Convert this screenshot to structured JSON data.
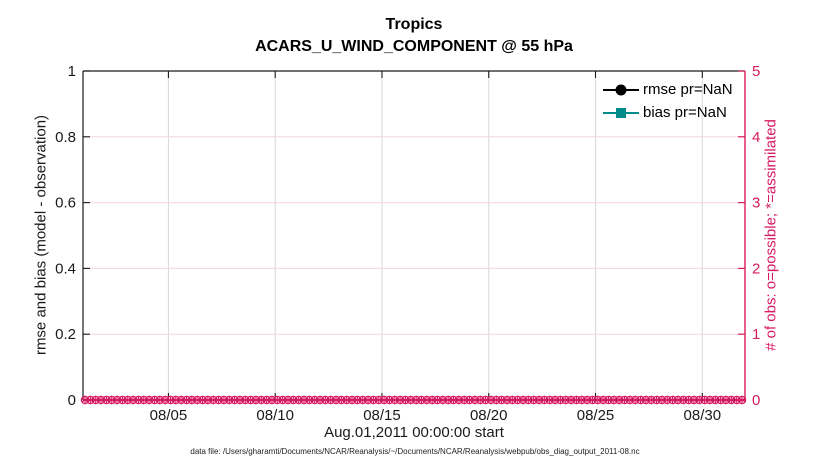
{
  "figure": {
    "title": "Tropics",
    "subtitle": "ACARS_U_WIND_COMPONENT @ 55 hPa",
    "xlabel": "Aug.01,2011 00:00:00 start",
    "ylabel_left": "rmse and bias (model - observation)",
    "ylabel_right": "# of obs: o=possible; *=assimilated",
    "footnote": "data file: /Users/gharamti/Documents/NCAR/Reanalysis/~/Documents/NCAR/Reanalysis/webpub/obs_diag_output_2011-08.nc"
  },
  "colors": {
    "axes_dark": "#1a1a1a",
    "obs_pink": "#d81b60",
    "grid_gray": "#d8d8d8",
    "grid_pink": "#f6d5e2",
    "rmse_black": "#000000",
    "bias_teal": "#008b8b"
  },
  "legend": {
    "entries": [
      {
        "label": "rmse pr=NaN",
        "marker": "filled-circle",
        "color": "#000000"
      },
      {
        "label": "bias pr=NaN",
        "marker": "filled-square",
        "color": "#008b8b"
      }
    ]
  },
  "chart_data": {
    "type": "line",
    "title": "Tropics",
    "subtitle": "ACARS_U_WIND_COMPONENT @ 55 hPa",
    "xlabel": "Aug.01,2011 00:00:00 start",
    "x_axis": {
      "range_days": [
        0,
        31
      ],
      "tick_day_offsets": [
        4,
        9,
        14,
        19,
        24,
        29
      ],
      "tick_labels": [
        "08/05",
        "08/10",
        "08/15",
        "08/20",
        "08/25",
        "08/30"
      ]
    },
    "y_left": {
      "label": "rmse and bias (model - observation)",
      "range": [
        0,
        1
      ],
      "tick_values": [
        0,
        0.2,
        0.4,
        0.6,
        0.8,
        1
      ],
      "tick_labels": [
        "0",
        "0.2",
        "0.4",
        "0.6",
        "0.8",
        "1"
      ]
    },
    "y_right": {
      "label": "# of obs: o=possible; *=assimilated",
      "range": [
        0,
        5
      ],
      "tick_values": [
        0,
        1,
        2,
        3,
        4,
        5
      ],
      "tick_labels": [
        "0",
        "1",
        "2",
        "3",
        "4",
        "5"
      ]
    },
    "grid": true,
    "legend_position": "top-right-inside",
    "series": [
      {
        "name": "rmse pr=NaN",
        "axis": "left",
        "color": "#000000",
        "marker": "filled-circle",
        "values_constant": "NaN",
        "plotted": false
      },
      {
        "name": "bias pr=NaN",
        "axis": "left",
        "color": "#008b8b",
        "marker": "filled-square",
        "values_constant": "NaN",
        "plotted": false
      },
      {
        "name": "# of obs possible",
        "axis": "right",
        "color": "#d81b60",
        "marker": "o",
        "n_points": 124,
        "values_constant": 0
      },
      {
        "name": "# of obs assimilated",
        "axis": "right",
        "color": "#d81b60",
        "marker": "*",
        "n_points": 124,
        "values_constant": 0
      }
    ]
  }
}
